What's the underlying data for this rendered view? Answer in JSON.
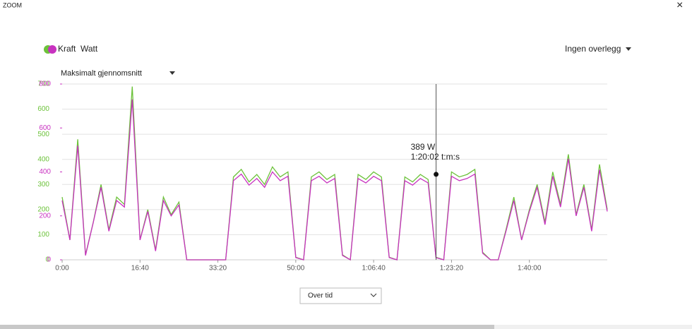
{
  "ui": {
    "zoom": "ZOOM",
    "close": "×",
    "overlay": "Ingen overlegg",
    "average": "Maksimalt gjennomsnitt",
    "mode": "Over tid"
  },
  "chart_data": {
    "type": "line",
    "x": [
      0,
      100,
      200,
      300,
      400,
      500,
      600,
      700,
      800,
      900,
      1000,
      1100,
      1200,
      1300,
      1400,
      1500,
      1600,
      1700,
      1800,
      1900,
      2000,
      2100,
      2200,
      2300,
      2400,
      2500,
      2600,
      2700,
      2800,
      2900,
      3000,
      3100,
      3200,
      3300,
      3400,
      3500,
      3600,
      3700,
      3800,
      3900,
      4000,
      4100,
      4200,
      4300,
      4400,
      4500,
      4600,
      4700,
      4800,
      4900,
      5000,
      5100,
      5200,
      5300,
      5400,
      5500,
      5600,
      5700,
      5800,
      5900,
      6000,
      6100,
      6200,
      6300,
      6400,
      6500,
      6600,
      6700,
      6800,
      6900,
      7000
    ],
    "series": [
      {
        "name": "Kraft",
        "color": "#6cc23a",
        "values": [
          250,
          80,
          480,
          20,
          150,
          300,
          120,
          250,
          220,
          690,
          80,
          200,
          40,
          250,
          180,
          230,
          0,
          0,
          0,
          0,
          0,
          0,
          330,
          360,
          310,
          340,
          300,
          370,
          330,
          350,
          10,
          0,
          330,
          350,
          320,
          340,
          20,
          0,
          340,
          320,
          350,
          330,
          10,
          0,
          330,
          310,
          340,
          320,
          10,
          0,
          350,
          330,
          340,
          360,
          30,
          0,
          0,
          120,
          250,
          80,
          200,
          300,
          150,
          350,
          220,
          420,
          180,
          300,
          120,
          380,
          200
        ]
      },
      {
        "name": "Watt",
        "color": "#c832c0",
        "axis": "y2",
        "values": [
          270,
          90,
          520,
          20,
          170,
          330,
          130,
          270,
          240,
          730,
          90,
          220,
          40,
          270,
          200,
          250,
          0,
          0,
          0,
          0,
          0,
          0,
          360,
          390,
          340,
          370,
          330,
          400,
          360,
          380,
          10,
          0,
          360,
          380,
          350,
          370,
          20,
          0,
          370,
          350,
          380,
          360,
          10,
          0,
          360,
          340,
          370,
          350,
          10,
          0,
          380,
          360,
          370,
          390,
          30,
          0,
          0,
          130,
          270,
          90,
          220,
          330,
          160,
          380,
          240,
          460,
          200,
          330,
          130,
          410,
          220
        ]
      }
    ],
    "xlim": [
      0,
      7000
    ],
    "xticks": [
      {
        "value": 0,
        "label": "0:00"
      },
      {
        "value": 1000,
        "label": "16:40"
      },
      {
        "value": 2000,
        "label": "33:20"
      },
      {
        "value": 3000,
        "label": "50:00"
      },
      {
        "value": 4000,
        "label": "1:06:40"
      },
      {
        "value": 5000,
        "label": "1:23:20"
      },
      {
        "value": 6000,
        "label": "1:40:00"
      }
    ],
    "ylim": [
      0,
      700
    ],
    "yticks": [
      0,
      100,
      200,
      300,
      400,
      500,
      600,
      700
    ],
    "y2lim": [
      0,
      800
    ],
    "y2ticks": [
      0,
      200,
      400,
      600,
      800
    ],
    "grid": true,
    "tooltip": {
      "x": 4802,
      "value": 389,
      "label": "389 W",
      "time_label": "1:20:02 t:m:s"
    }
  }
}
